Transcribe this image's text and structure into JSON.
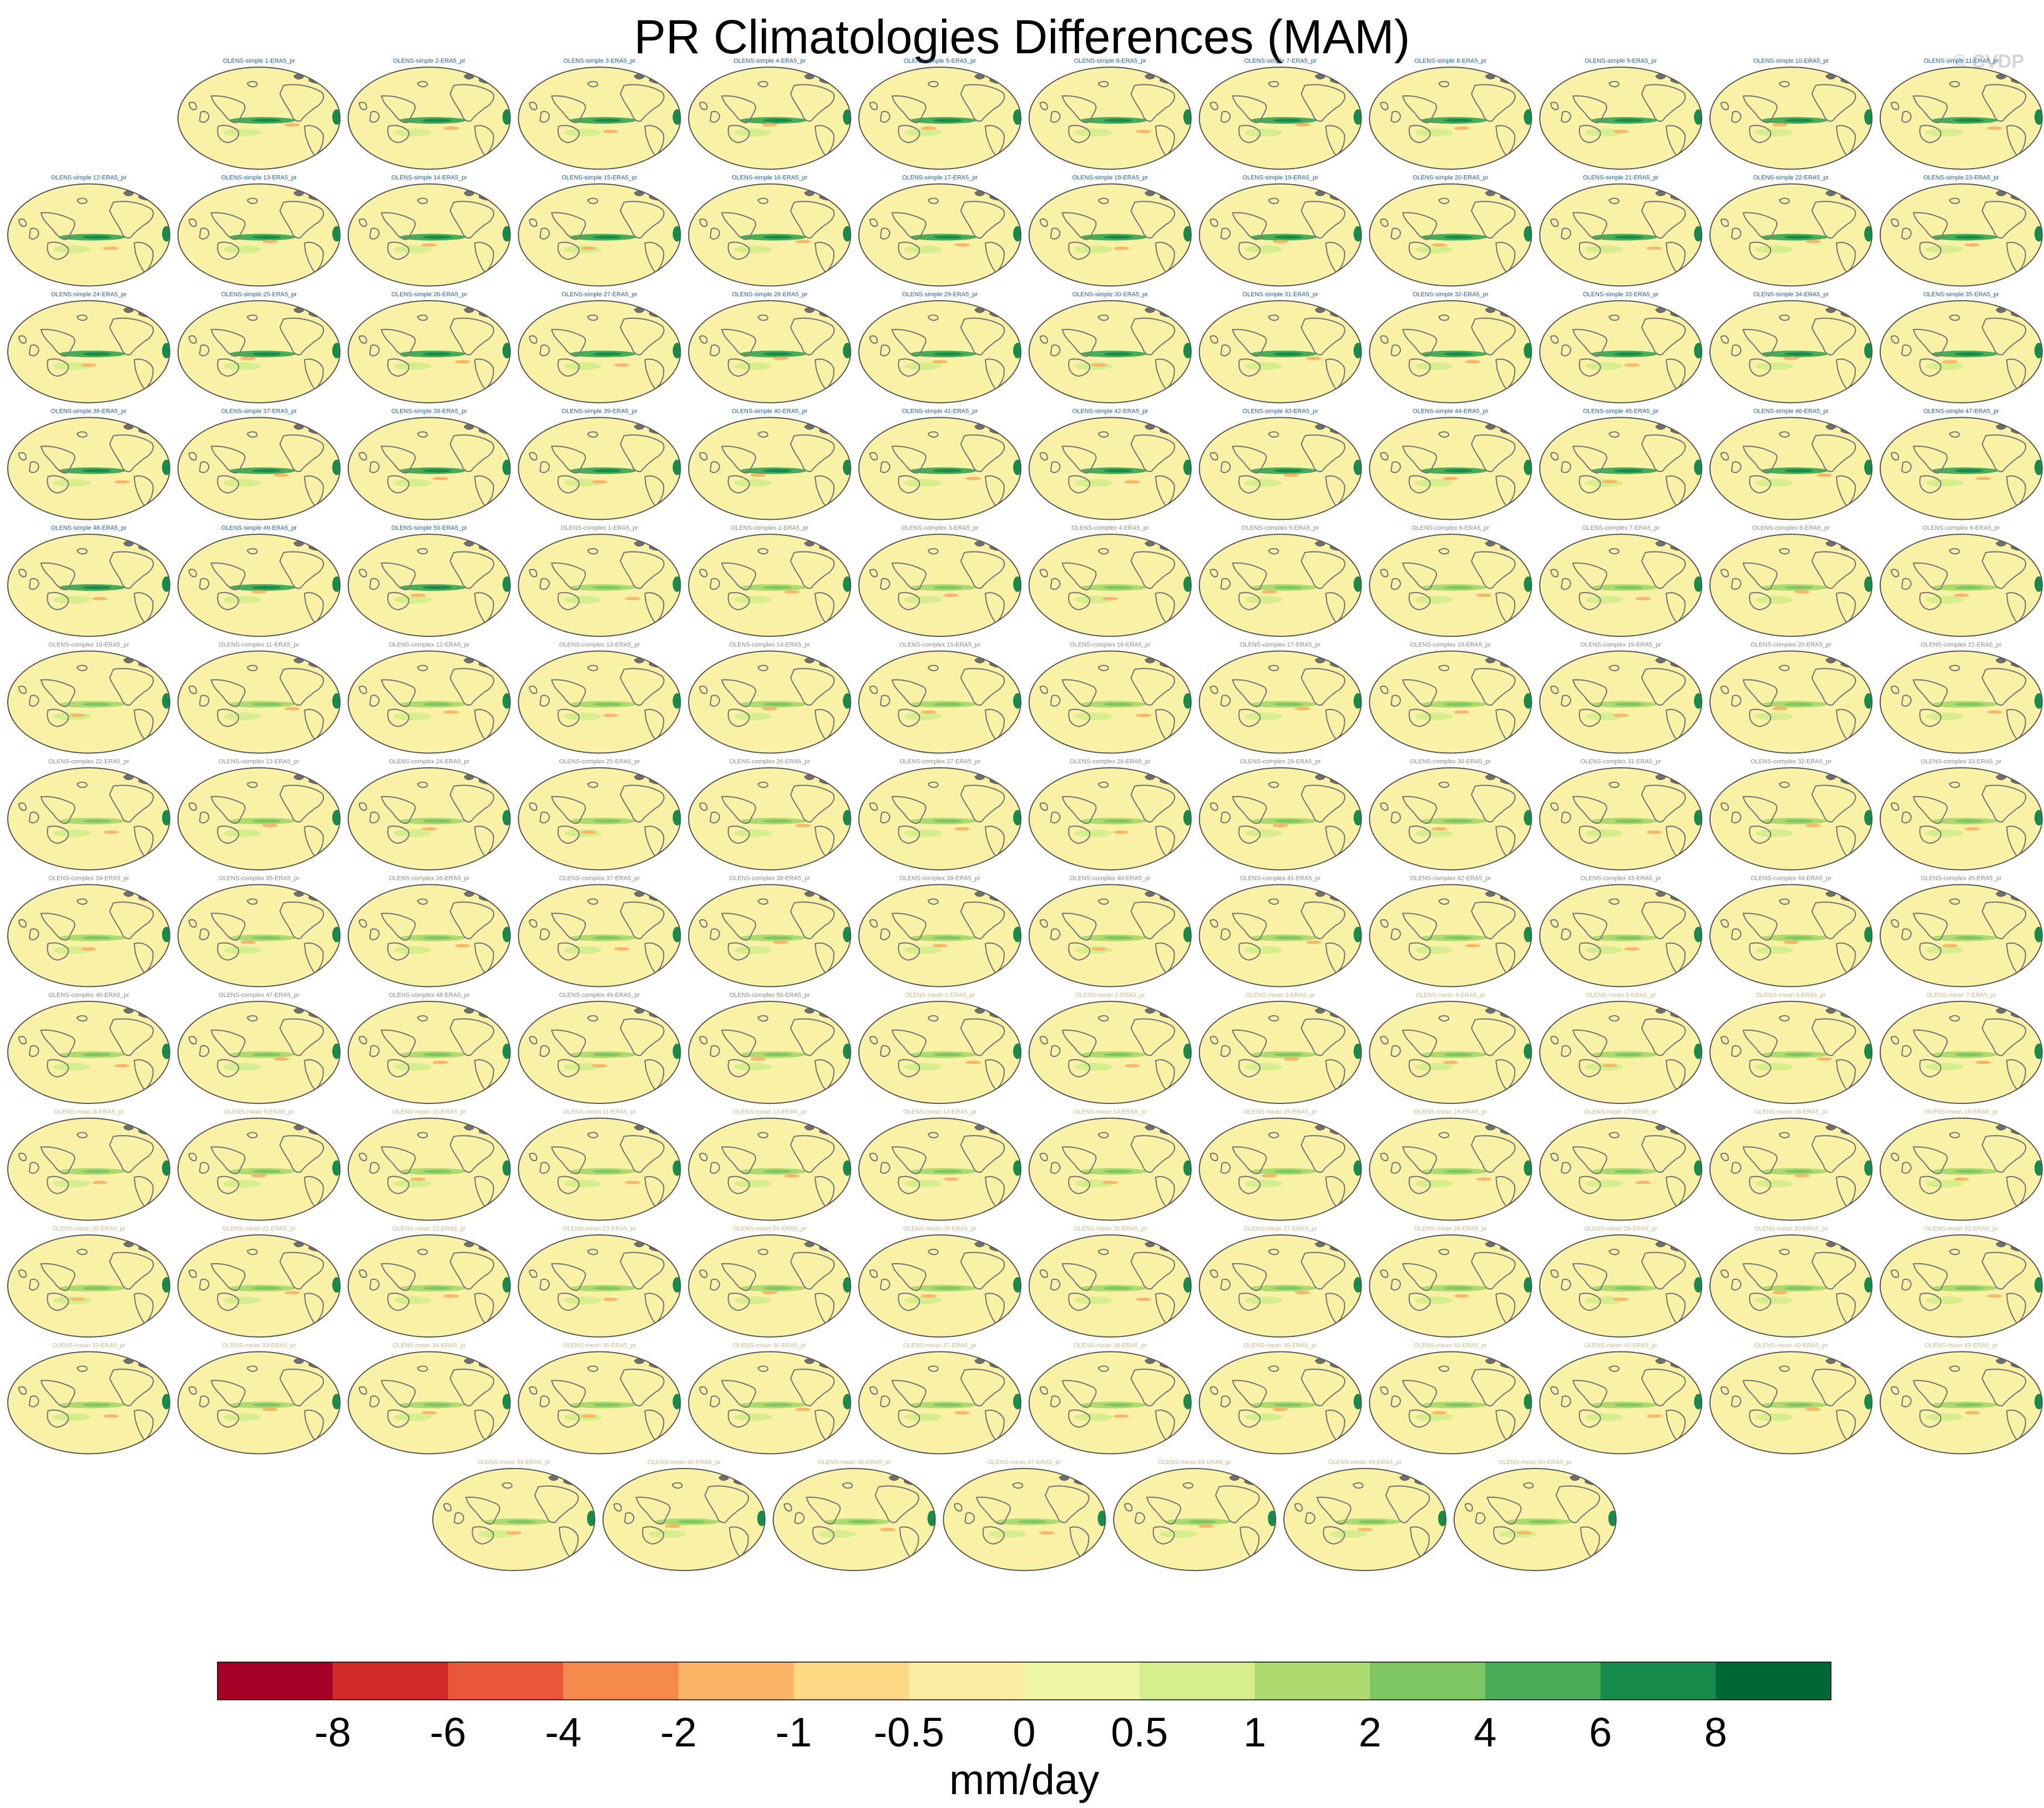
{
  "title": "PR Climatologies Differences (MAM)",
  "watermark": "© CVDP",
  "chart_data": {
    "type": "heatmap",
    "description_panels_rows": 13,
    "panel_groups": [
      {
        "prefix": "OLENS-simple",
        "count": 50,
        "title_color": "#1f5fb0"
      },
      {
        "prefix": "OLENS-complex",
        "count": 50,
        "title_color": "#8a8a8a"
      },
      {
        "prefix": "OLENS-mean",
        "count": 50,
        "title_color": "#c9b98a"
      }
    ],
    "panel_suffix": "-ERA5_pr",
    "panel_titles": [
      "OLENS-simple 1-ERA5_pr",
      "OLENS-simple 2-ERA5_pr",
      "OLENS-simple 3-ERA5_pr",
      "OLENS-simple 4-ERA5_pr",
      "OLENS-simple 5-ERA5_pr",
      "OLENS-simple 6-ERA5_pr",
      "OLENS-simple 7-ERA5_pr",
      "OLENS-simple 8-ERA5_pr",
      "OLENS-simple 9-ERA5_pr",
      "OLENS-simple 10-ERA5_pr",
      "OLENS-simple 11-ERA5_pr",
      "OLENS-simple 12-ERA5_pr",
      "OLENS-simple 13-ERA5_pr",
      "OLENS-simple 14-ERA5_pr",
      "OLENS-simple 15-ERA5_pr",
      "OLENS-simple 16-ERA5_pr",
      "OLENS-simple 17-ERA5_pr",
      "OLENS-simple 18-ERA5_pr",
      "OLENS-simple 19-ERA5_pr",
      "OLENS-simple 20-ERA5_pr",
      "OLENS-simple 21-ERA5_pr",
      "OLENS-simple 22-ERA5_pr",
      "OLENS-simple 23-ERA5_pr",
      "OLENS-simple 24-ERA5_pr",
      "OLENS-simple 25-ERA5_pr",
      "OLENS-simple 26-ERA5_pr",
      "OLENS-simple 27-ERA5_pr",
      "OLENS-simple 28-ERA5_pr",
      "OLENS-simple 29-ERA5_pr",
      "OLENS-simple 30-ERA5_pr",
      "OLENS-simple 31-ERA5_pr",
      "OLENS-simple 32-ERA5_pr",
      "OLENS-simple 33-ERA5_pr",
      "OLENS-simple 34-ERA5_pr",
      "OLENS-simple 35-ERA5_pr",
      "OLENS-simple 36-ERA5_pr",
      "OLENS-simple 37-ERA5_pr",
      "OLENS-simple 38-ERA5_pr",
      "OLENS-simple 39-ERA5_pr",
      "OLENS-simple 40-ERA5_pr",
      "OLENS-simple 41-ERA5_pr",
      "OLENS-simple 42-ERA5_pr",
      "OLENS-simple 43-ERA5_pr",
      "OLENS-simple 44-ERA5_pr",
      "OLENS-simple 45-ERA5_pr",
      "OLENS-simple 46-ERA5_pr",
      "OLENS-simple 47-ERA5_pr",
      "OLENS-simple 48-ERA5_pr",
      "OLENS-simple 49-ERA5_pr",
      "OLENS-simple 50-ERA5_pr",
      "OLENS-complex 1-ERA5_pr",
      "OLENS-complex 2-ERA5_pr",
      "OLENS-complex 3-ERA5_pr",
      "OLENS-complex 4-ERA5_pr",
      "OLENS-complex 5-ERA5_pr",
      "OLENS-complex 6-ERA5_pr",
      "OLENS-complex 7-ERA5_pr",
      "OLENS-complex 8-ERA5_pr",
      "OLENS-complex 9-ERA5_pr",
      "OLENS-complex 10-ERA5_pr",
      "OLENS-complex 11-ERA5_pr",
      "OLENS-complex 12-ERA5_pr",
      "OLENS-complex 13-ERA5_pr",
      "OLENS-complex 14-ERA5_pr",
      "OLENS-complex 15-ERA5_pr",
      "OLENS-complex 16-ERA5_pr",
      "OLENS-complex 17-ERA5_pr",
      "OLENS-complex 18-ERA5_pr",
      "OLENS-complex 19-ERA5_pr",
      "OLENS-complex 20-ERA5_pr",
      "OLENS-complex 21-ERA5_pr",
      "OLENS-complex 22-ERA5_pr",
      "OLENS-complex 23-ERA5_pr",
      "OLENS-complex 24-ERA5_pr",
      "OLENS-complex 25-ERA5_pr",
      "OLENS-complex 26-ERA5_pr",
      "OLENS-complex 27-ERA5_pr",
      "OLENS-complex 28-ERA5_pr",
      "OLENS-complex 29-ERA5_pr",
      "OLENS-complex 30-ERA5_pr",
      "OLENS-complex 31-ERA5_pr",
      "OLENS-complex 32-ERA5_pr",
      "OLENS-complex 33-ERA5_pr",
      "OLENS-complex 34-ERA5_pr",
      "OLENS-complex 35-ERA5_pr",
      "OLENS-complex 36-ERA5_pr",
      "OLENS-complex 37-ERA5_pr",
      "OLENS-complex 38-ERA5_pr",
      "OLENS-complex 39-ERA5_pr",
      "OLENS-complex 40-ERA5_pr",
      "OLENS-complex 41-ERA5_pr",
      "OLENS-complex 42-ERA5_pr",
      "OLENS-complex 43-ERA5_pr",
      "OLENS-complex 44-ERA5_pr",
      "OLENS-complex 45-ERA5_pr",
      "OLENS-complex 46-ERA5_pr",
      "OLENS-complex 47-ERA5_pr",
      "OLENS-complex 48-ERA5_pr",
      "OLENS-complex 49-ERA5_pr",
      "OLENS-complex 50-ERA5_pr",
      "OLENS-mean 1-ERA5_pr",
      "OLENS-mean 2-ERA5_pr",
      "OLENS-mean 3-ERA5_pr",
      "OLENS-mean 4-ERA5_pr",
      "OLENS-mean 5-ERA5_pr",
      "OLENS-mean 6-ERA5_pr",
      "OLENS-mean 7-ERA5_pr",
      "OLENS-mean 8-ERA5_pr",
      "OLENS-mean 9-ERA5_pr",
      "OLENS-mean 10-ERA5_pr",
      "OLENS-mean 11-ERA5_pr",
      "OLENS-mean 12-ERA5_pr",
      "OLENS-mean 13-ERA5_pr",
      "OLENS-mean 14-ERA5_pr",
      "OLENS-mean 15-ERA5_pr",
      "OLENS-mean 16-ERA5_pr",
      "OLENS-mean 17-ERA5_pr",
      "OLENS-mean 18-ERA5_pr",
      "OLENS-mean 19-ERA5_pr",
      "OLENS-mean 20-ERA5_pr",
      "OLENS-mean 21-ERA5_pr",
      "OLENS-mean 22-ERA5_pr",
      "OLENS-mean 23-ERA5_pr",
      "OLENS-mean 24-ERA5_pr",
      "OLENS-mean 25-ERA5_pr",
      "OLENS-mean 26-ERA5_pr",
      "OLENS-mean 27-ERA5_pr",
      "OLENS-mean 28-ERA5_pr",
      "OLENS-mean 29-ERA5_pr",
      "OLENS-mean 30-ERA5_pr",
      "OLENS-mean 31-ERA5_pr",
      "OLENS-mean 32-ERA5_pr",
      "OLENS-mean 33-ERA5_pr",
      "OLENS-mean 34-ERA5_pr",
      "OLENS-mean 35-ERA5_pr",
      "OLENS-mean 36-ERA5_pr",
      "OLENS-mean 37-ERA5_pr",
      "OLENS-mean 38-ERA5_pr",
      "OLENS-mean 39-ERA5_pr",
      "OLENS-mean 40-ERA5_pr",
      "OLENS-mean 41-ERA5_pr",
      "OLENS-mean 42-ERA5_pr",
      "OLENS-mean 43-ERA5_pr",
      "OLENS-mean 44-ERA5_pr",
      "OLENS-mean 45-ERA5_pr",
      "OLENS-mean 46-ERA5_pr",
      "OLENS-mean 47-ERA5_pr",
      "OLENS-mean 48-ERA5_pr",
      "OLENS-mean 49-ERA5_pr",
      "OLENS-mean 50-ERA5_pr"
    ],
    "colorbar": {
      "label": "mm/day",
      "tick_labels": [
        "-8",
        "-6",
        "-4",
        "-2",
        "-1",
        "-0.5",
        "0",
        "0.5",
        "1",
        "2",
        "4",
        "6",
        "8"
      ],
      "colors": [
        "#a50026",
        "#d12b27",
        "#e9573b",
        "#f58a4c",
        "#fcb467",
        "#fdd985",
        "#fbeea3",
        "#eff7a6",
        "#d6ee8e",
        "#aedb6f",
        "#7ec563",
        "#48ac58",
        "#168b4b",
        "#006837"
      ]
    },
    "map_base_color": "#f8f1a6",
    "coast_color": "#777777"
  }
}
